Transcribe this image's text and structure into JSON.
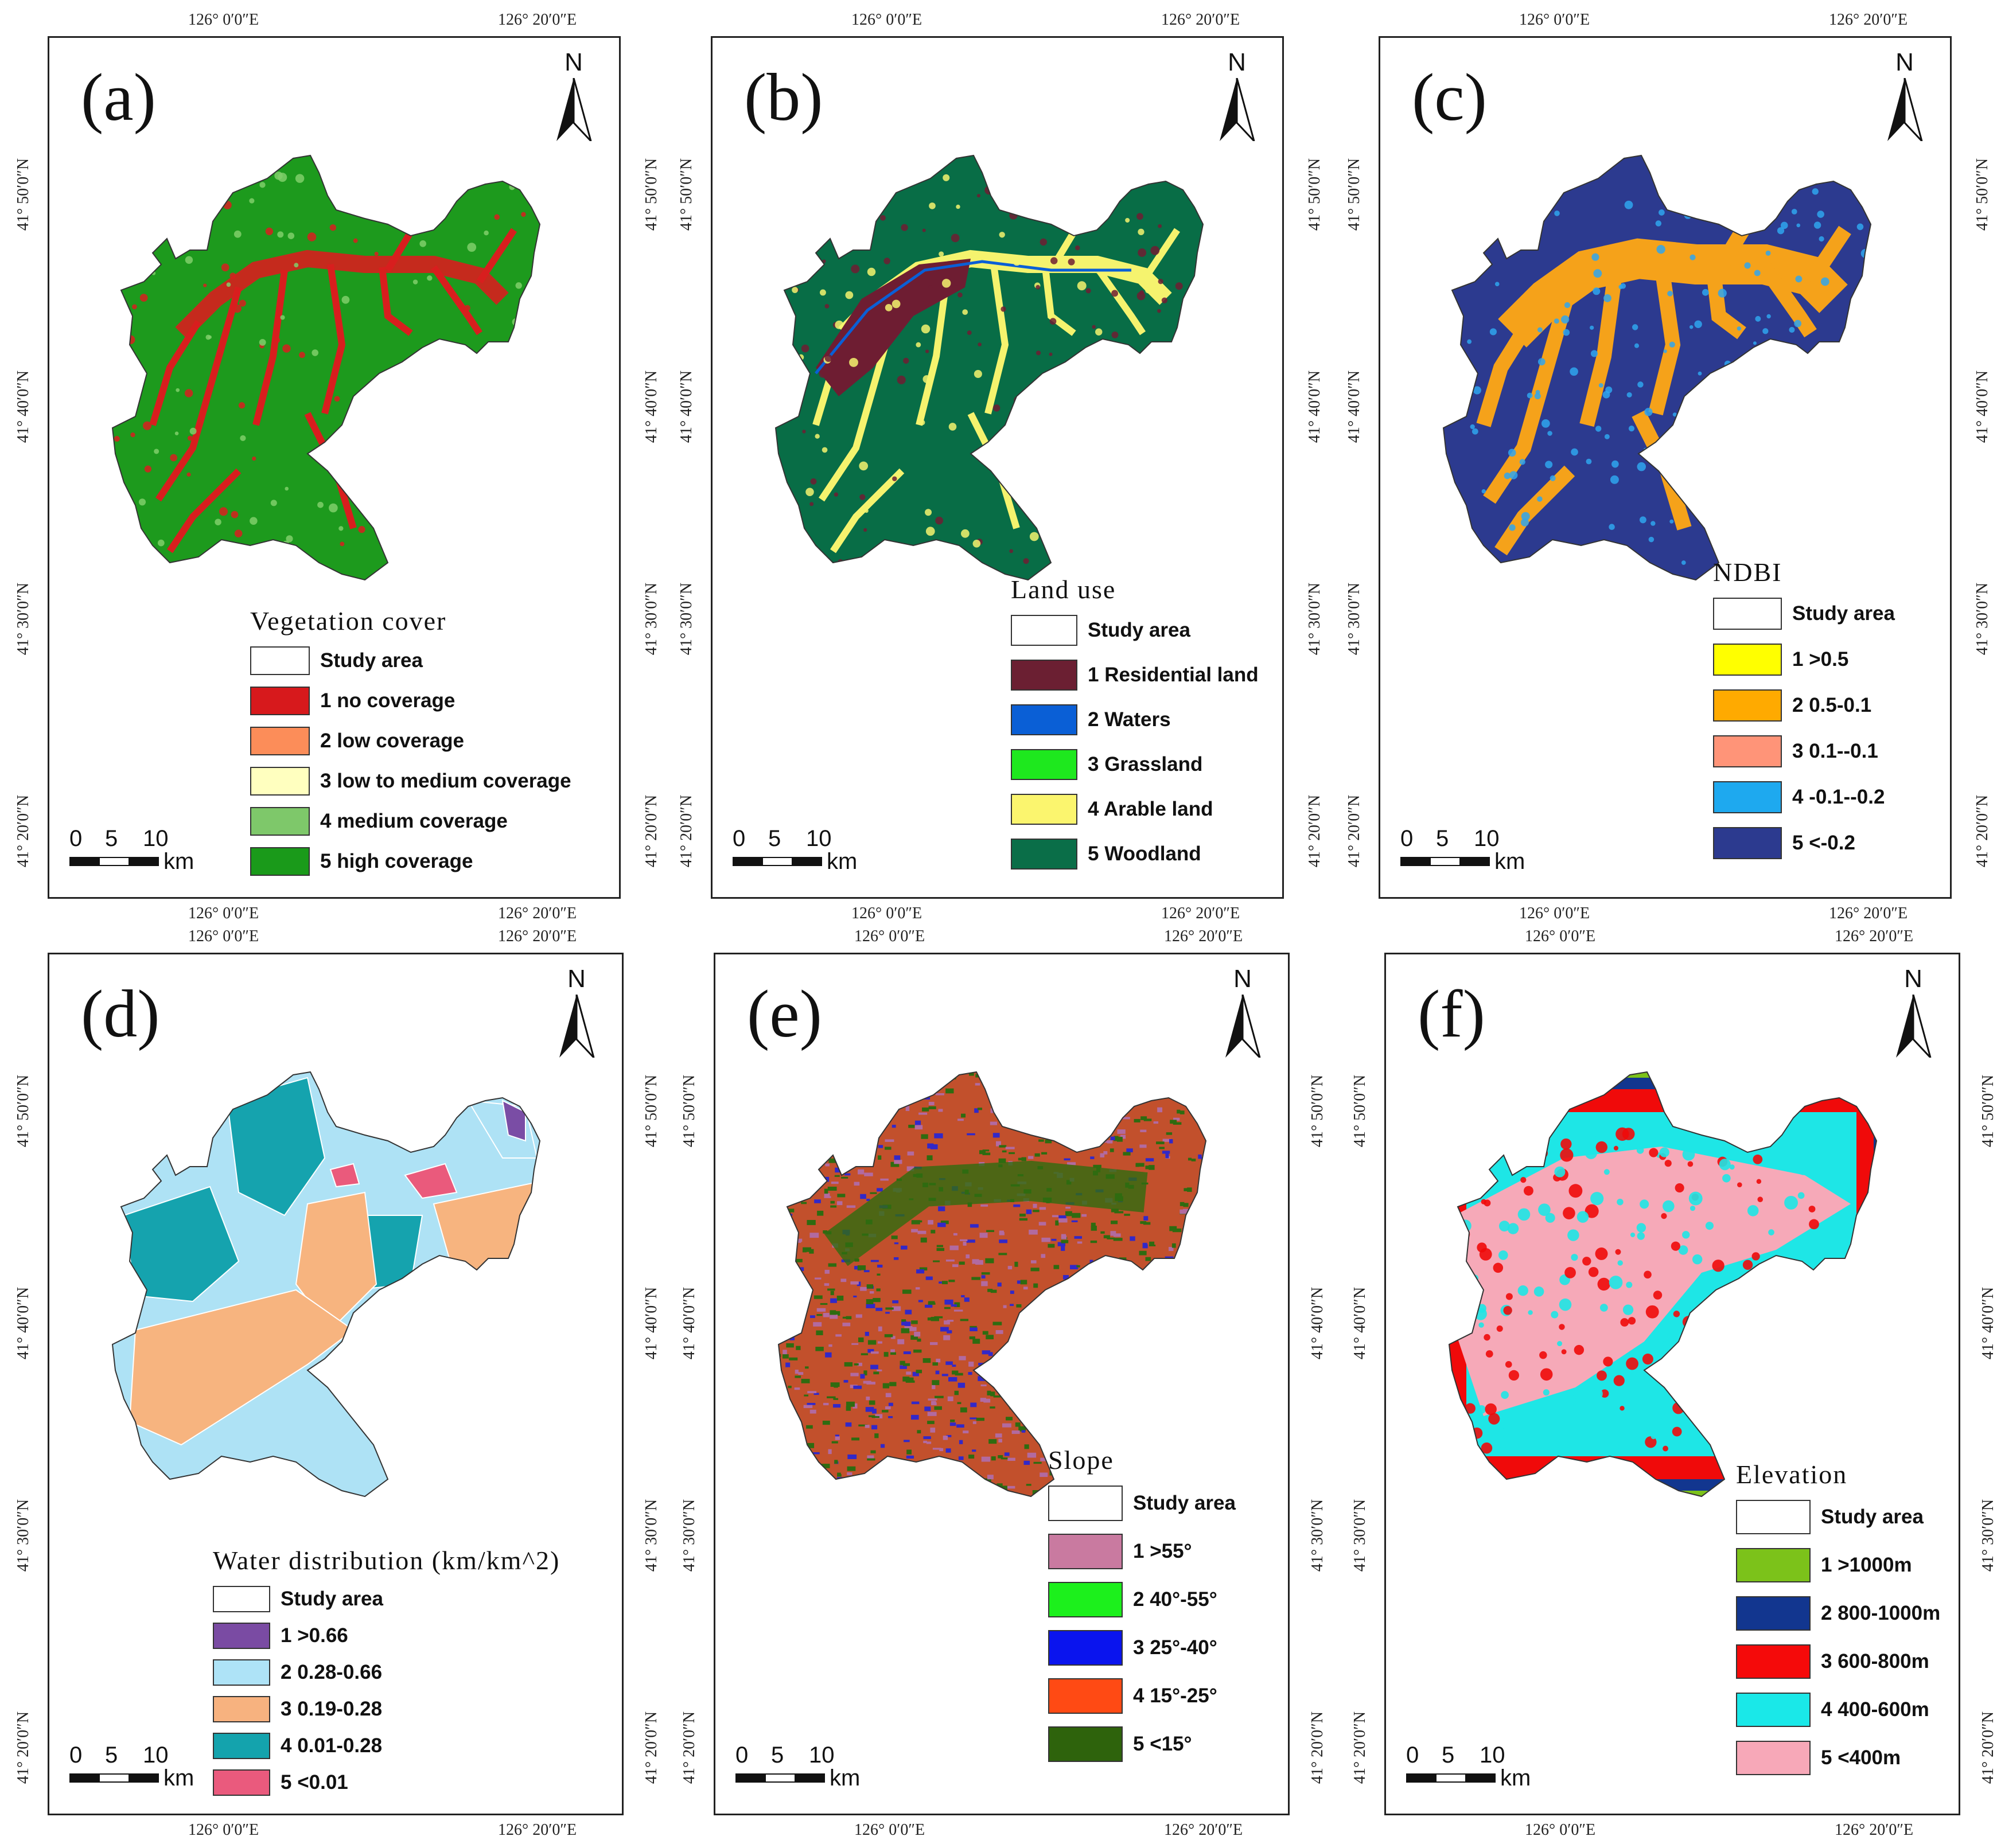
{
  "coord_labels": {
    "lon_left": "126° 0′0″E",
    "lon_right": "126° 20′0″E",
    "lat_50": "41° 50′0″N",
    "lat_40": "41° 40′0″N",
    "lat_30": "41° 30′0″N",
    "lat_20": "41° 20′0″N"
  },
  "north_label": "N",
  "scale": {
    "zero": "0",
    "five": "5",
    "ten": "10",
    "unit": "km"
  },
  "panels": [
    {
      "id": "a",
      "label": "(a)",
      "map_colors": [
        "#1d9a1d",
        "#d81e1e",
        "#7fcf6a"
      ],
      "legend": {
        "title": "Vegetation cover",
        "items": [
          {
            "label": "Study area",
            "color": "#ffffff"
          },
          {
            "label": "1  no coverage",
            "color": "#d7191c"
          },
          {
            "label": "2  low coverage",
            "color": "#fc8d59"
          },
          {
            "label": "3  low to medium coverage",
            "color": "#ffffbf"
          },
          {
            "label": "4  medium coverage",
            "color": "#7ec86a"
          },
          {
            "label": "5  high coverage",
            "color": "#1a9a1a"
          }
        ]
      }
    },
    {
      "id": "b",
      "label": "(b)",
      "map_colors": [
        "#086d46",
        "#f5f36e",
        "#6e1d32"
      ],
      "legend": {
        "title": "Land use",
        "items": [
          {
            "label": "Study area",
            "color": "#ffffff"
          },
          {
            "label": "1 Residential land",
            "color": "#6b1f32"
          },
          {
            "label": "2 Waters",
            "color": "#0a5fd6"
          },
          {
            "label": "3 Grassland",
            "color": "#1ee81e"
          },
          {
            "label": "4 Arable land",
            "color": "#fbf56e"
          },
          {
            "label": "5 Woodland",
            "color": "#0a6e48"
          }
        ]
      }
    },
    {
      "id": "c",
      "label": "(c)",
      "map_colors": [
        "#2c3a8f",
        "#f5a21a",
        "#2fa6ee"
      ],
      "legend": {
        "title": "NDBI",
        "items": [
          {
            "label": "Study area",
            "color": "#ffffff"
          },
          {
            "label": "1 >0.5",
            "color": "#ffff00"
          },
          {
            "label": "2 0.5-0.1",
            "color": "#ffaa00"
          },
          {
            "label": "3 0.1--0.1",
            "color": "#ff9478"
          },
          {
            "label": "4 -0.1--0.2",
            "color": "#1ea9ef"
          },
          {
            "label": "5 <-0.2",
            "color": "#2c3a8f"
          }
        ]
      }
    },
    {
      "id": "d",
      "label": "(d)",
      "map_colors": [
        "#aee2f5",
        "#f7b47f",
        "#15a3ae",
        "#ea5a7c",
        "#7a4da5"
      ],
      "legend": {
        "title": "Water distribution (km/km^2)",
        "items": [
          {
            "label": "Study area",
            "color": "#ffffff"
          },
          {
            "label": "1 >0.66",
            "color": "#7a4ba3"
          },
          {
            "label": "2 0.28-0.66",
            "color": "#aee3f7"
          },
          {
            "label": "3 0.19-0.28",
            "color": "#f7b27f"
          },
          {
            "label": "4 0.01-0.28",
            "color": "#14a3ad"
          },
          {
            "label": "5 <0.01",
            "color": "#ea5a7d"
          }
        ]
      }
    },
    {
      "id": "e",
      "label": "(e)",
      "map_colors": [
        "#c2502c",
        "#2f6b10",
        "#3228c8"
      ],
      "legend": {
        "title": "Slope",
        "items": [
          {
            "label": "Study area",
            "color": "#ffffff"
          },
          {
            "label": "1 >55°",
            "color": "#c97aa0"
          },
          {
            "label": "2 40°-55°",
            "color": "#1cf01c"
          },
          {
            "label": "3 25°-40°",
            "color": "#0a14ee"
          },
          {
            "label": "4 15°-25°",
            "color": "#ff4a14"
          },
          {
            "label": "5 <15°",
            "color": "#2e630c"
          }
        ]
      }
    },
    {
      "id": "f",
      "label": "(f)",
      "map_colors": [
        "#f6a9b8",
        "#1ee6e6",
        "#f00a0a",
        "#12368f",
        "#7cc21a"
      ],
      "legend": {
        "title": "Elevation",
        "items": [
          {
            "label": "Study area",
            "color": "#ffffff"
          },
          {
            "label": "1 >1000m",
            "color": "#7cc21a"
          },
          {
            "label": "2 800-1000m",
            "color": "#12368f"
          },
          {
            "label": "3 600-800m",
            "color": "#f50a0a"
          },
          {
            "label": "4 400-600m",
            "color": "#1ae8e8"
          },
          {
            "label": "5 <400m",
            "color": "#f7a8b8"
          }
        ]
      }
    }
  ]
}
